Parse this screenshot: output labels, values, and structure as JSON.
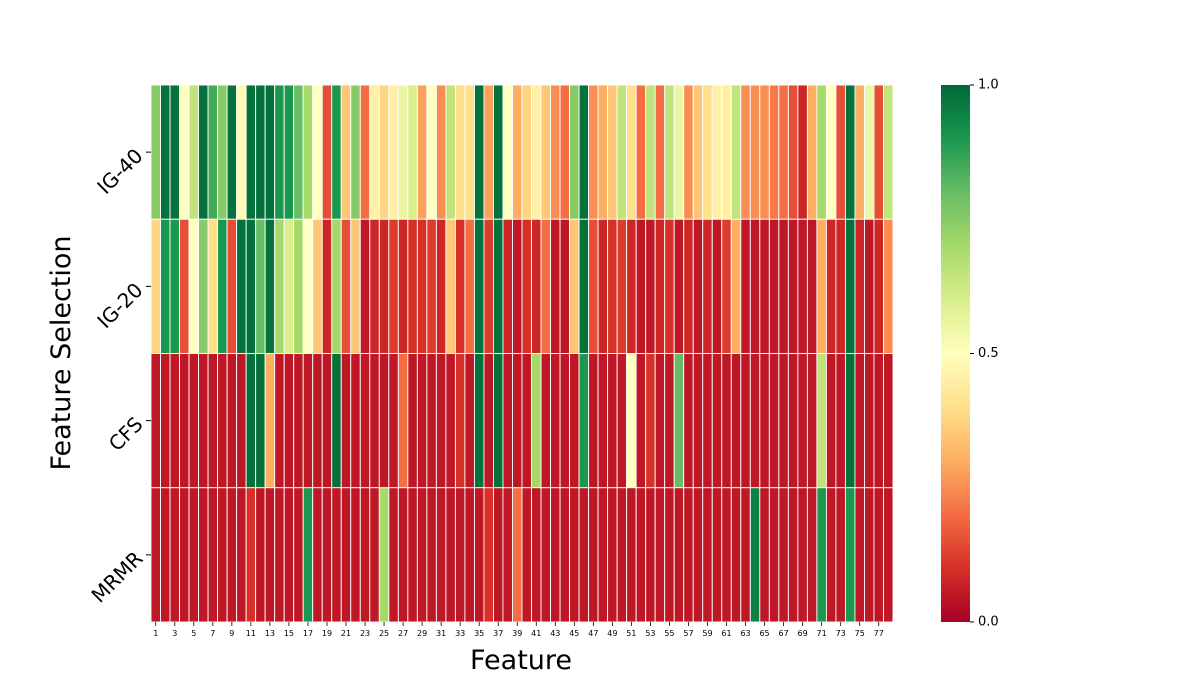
{
  "chart_data": {
    "type": "heatmap",
    "title": "",
    "xlabel": "Feature",
    "ylabel": "Feature Selection",
    "rows": [
      "IG-40",
      "IG-20",
      "CFS",
      "MRMR"
    ],
    "x_tick_labels": [
      "1",
      "3",
      "5",
      "7",
      "9",
      "11",
      "13",
      "15",
      "17",
      "19",
      "21",
      "23",
      "25",
      "27",
      "29",
      "31",
      "33",
      "35",
      "37",
      "39",
      "41",
      "43",
      "45",
      "47",
      "49",
      "51",
      "53",
      "55",
      "57",
      "59",
      "61",
      "63",
      "65",
      "67",
      "69",
      "71",
      "73",
      "75",
      "77"
    ],
    "columns": 78,
    "colorscale": "RdYlGn",
    "colorbar_ticks": [
      "0.0",
      "0.5",
      "1.0"
    ],
    "value_range": [
      0,
      1
    ],
    "grid": false,
    "values": [
      [
        0.75,
        0.98,
        0.98,
        0.5,
        0.65,
        0.98,
        0.85,
        0.75,
        0.98,
        0.48,
        0.98,
        0.98,
        0.98,
        0.9,
        0.9,
        0.8,
        0.7,
        0.5,
        0.15,
        0.9,
        0.35,
        0.75,
        0.2,
        0.45,
        0.38,
        0.45,
        0.55,
        0.6,
        0.28,
        0.5,
        0.25,
        0.65,
        0.4,
        0.4,
        0.98,
        0.28,
        0.98,
        0.5,
        0.3,
        0.38,
        0.45,
        0.35,
        0.25,
        0.2,
        0.75,
        0.98,
        0.25,
        0.3,
        0.35,
        0.65,
        0.4,
        0.2,
        0.65,
        0.2,
        0.65,
        0.55,
        0.25,
        0.35,
        0.4,
        0.45,
        0.45,
        0.65,
        0.25,
        0.25,
        0.25,
        0.22,
        0.2,
        0.15,
        0.08,
        0.3,
        0.7,
        0.5,
        0.15,
        0.98,
        0.3,
        0.55,
        0.15,
        0.65
      ],
      [
        0.38,
        0.9,
        0.9,
        0.15,
        0.5,
        0.75,
        0.4,
        0.9,
        0.15,
        0.98,
        0.98,
        0.8,
        0.98,
        0.7,
        0.6,
        0.7,
        0.5,
        0.35,
        0.08,
        0.7,
        0.15,
        0.35,
        0.05,
        0.08,
        0.08,
        0.12,
        0.08,
        0.1,
        0.1,
        0.12,
        0.08,
        0.35,
        0.1,
        0.2,
        0.98,
        0.12,
        0.98,
        0.08,
        0.05,
        0.1,
        0.08,
        0.2,
        0.05,
        0.05,
        0.35,
        0.98,
        0.15,
        0.08,
        0.1,
        0.12,
        0.08,
        0.05,
        0.05,
        0.08,
        0.1,
        0.05,
        0.08,
        0.05,
        0.08,
        0.05,
        0.12,
        0.3,
        0.05,
        0.05,
        0.05,
        0.05,
        0.05,
        0.05,
        0.05,
        0.05,
        0.3,
        0.08,
        0.08,
        0.98,
        0.08,
        0.05,
        0.08,
        0.25
      ],
      [
        0.05,
        0.05,
        0.05,
        0.05,
        0.05,
        0.05,
        0.05,
        0.05,
        0.05,
        0.05,
        0.98,
        0.98,
        0.3,
        0.05,
        0.05,
        0.05,
        0.05,
        0.05,
        0.05,
        0.98,
        0.05,
        0.05,
        0.05,
        0.05,
        0.05,
        0.05,
        0.2,
        0.05,
        0.05,
        0.05,
        0.05,
        0.05,
        0.1,
        0.05,
        0.98,
        0.05,
        0.98,
        0.05,
        0.05,
        0.05,
        0.7,
        0.05,
        0.05,
        0.05,
        0.05,
        0.9,
        0.05,
        0.05,
        0.05,
        0.05,
        0.5,
        0.05,
        0.1,
        0.05,
        0.05,
        0.8,
        0.05,
        0.05,
        0.05,
        0.05,
        0.05,
        0.05,
        0.05,
        0.05,
        0.05,
        0.05,
        0.05,
        0.05,
        0.05,
        0.05,
        0.65,
        0.05,
        0.05,
        0.98,
        0.05,
        0.05,
        0.05,
        0.05
      ],
      [
        0.05,
        0.05,
        0.05,
        0.05,
        0.05,
        0.05,
        0.05,
        0.05,
        0.05,
        0.05,
        0.1,
        0.05,
        0.05,
        0.05,
        0.05,
        0.05,
        0.9,
        0.05,
        0.05,
        0.05,
        0.05,
        0.05,
        0.05,
        0.05,
        0.7,
        0.05,
        0.05,
        0.05,
        0.05,
        0.05,
        0.05,
        0.05,
        0.05,
        0.05,
        0.05,
        0.1,
        0.05,
        0.05,
        0.2,
        0.05,
        0.05,
        0.05,
        0.05,
        0.05,
        0.05,
        0.05,
        0.05,
        0.05,
        0.05,
        0.05,
        0.05,
        0.05,
        0.05,
        0.05,
        0.05,
        0.05,
        0.05,
        0.05,
        0.05,
        0.05,
        0.05,
        0.05,
        0.05,
        0.95,
        0.05,
        0.05,
        0.05,
        0.05,
        0.05,
        0.05,
        0.9,
        0.05,
        0.05,
        0.9,
        0.05,
        0.05,
        0.05,
        0.05
      ]
    ]
  }
}
